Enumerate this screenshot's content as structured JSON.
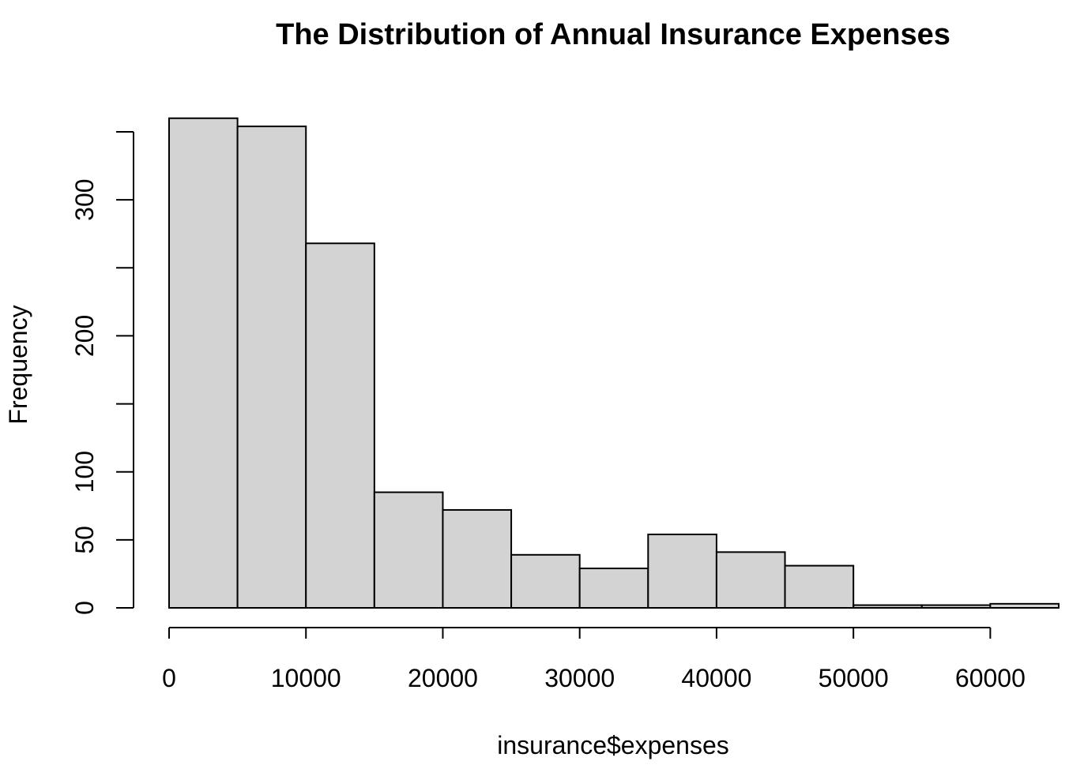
{
  "chart_data": {
    "type": "bar",
    "title": "The Distribution of Annual Insurance Expenses",
    "xlabel": "insurance$expenses",
    "ylabel": "Frequency",
    "bins": [
      {
        "from": 0,
        "to": 5000,
        "count": 360
      },
      {
        "from": 5000,
        "to": 10000,
        "count": 354
      },
      {
        "from": 10000,
        "to": 15000,
        "count": 268
      },
      {
        "from": 15000,
        "to": 20000,
        "count": 85
      },
      {
        "from": 20000,
        "to": 25000,
        "count": 72
      },
      {
        "from": 25000,
        "to": 30000,
        "count": 39
      },
      {
        "from": 30000,
        "to": 35000,
        "count": 29
      },
      {
        "from": 35000,
        "to": 40000,
        "count": 54
      },
      {
        "from": 40000,
        "to": 45000,
        "count": 41
      },
      {
        "from": 45000,
        "to": 50000,
        "count": 31
      },
      {
        "from": 50000,
        "to": 55000,
        "count": 2
      },
      {
        "from": 55000,
        "to": 60000,
        "count": 2
      },
      {
        "from": 60000,
        "to": 65000,
        "count": 3
      }
    ],
    "x_ticks": [
      0,
      10000,
      20000,
      30000,
      40000,
      50000,
      60000
    ],
    "x_tick_labels": [
      "0",
      "10000",
      "20000",
      "30000",
      "40000",
      "50000",
      "60000"
    ],
    "y_ticks": [
      0,
      50,
      100,
      150,
      200,
      250,
      300,
      350
    ],
    "y_tick_labels": [
      "0",
      "50",
      "100",
      "",
      "200",
      "",
      "300",
      ""
    ],
    "xlim": [
      0,
      65000
    ],
    "ylim": [
      0,
      350
    ],
    "grid": false,
    "legend": "none",
    "colors": {
      "bar_fill": "#d3d3d3",
      "bar_stroke": "#000000"
    }
  }
}
